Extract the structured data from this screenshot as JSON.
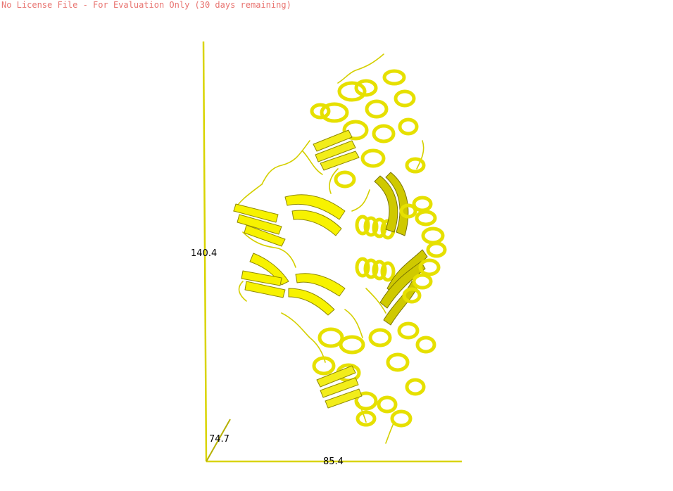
{
  "license_banner": "No License File - For Evaluation Only (30 days remaining)",
  "axes": {
    "y_label": "140.4",
    "z_label": "74.7",
    "x_label": "85.4"
  },
  "colors": {
    "banner_text": "#e8736f",
    "axis": "#d9d400",
    "ribbon_light": "#ffff3a",
    "ribbon_mid": "#e6e000",
    "ribbon_dark": "#8f8a00",
    "background": "#ffffff"
  },
  "icons": {
    "structure": "protein-ribbon-structure"
  }
}
